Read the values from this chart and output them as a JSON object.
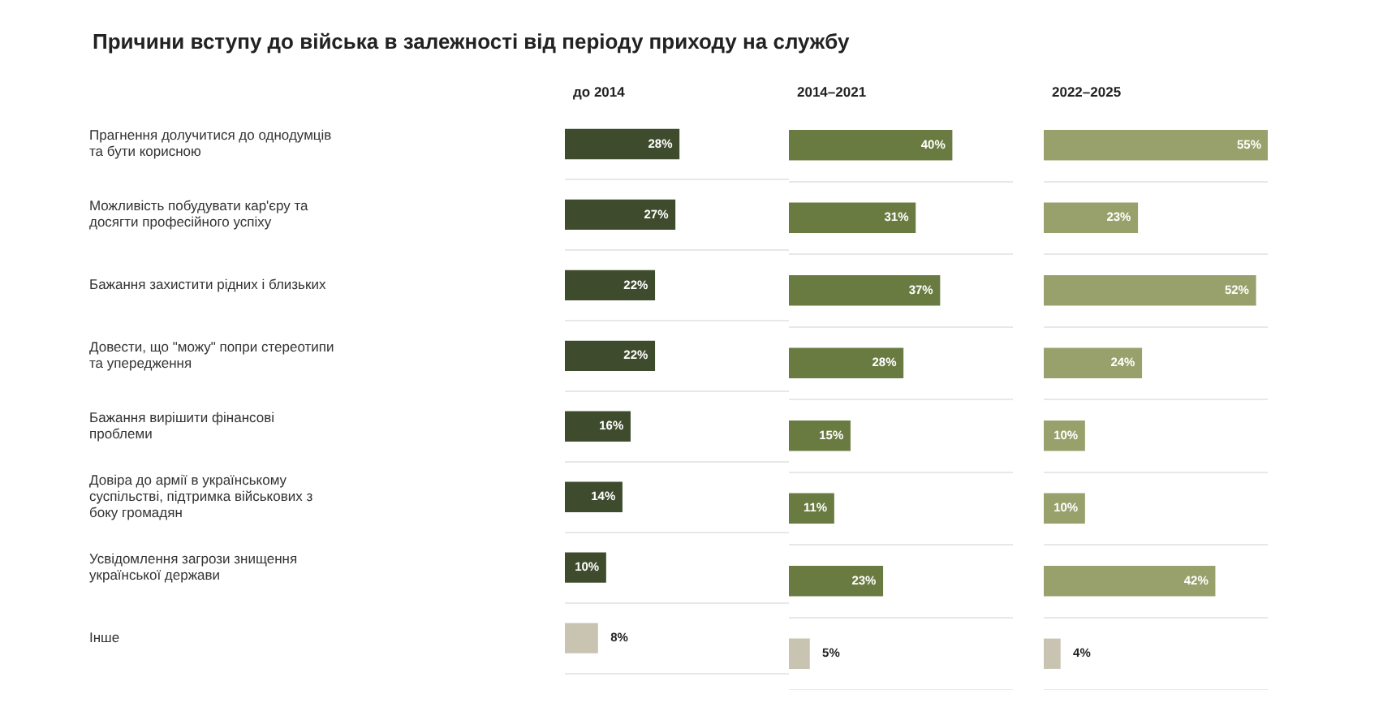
{
  "chart_data": [
    {
      "type": "other",
      "title": "Причини вступу до війська в залежності від періоду приходу на службу"
    },
    {
      "type": "bar",
      "orientation": "horizontal",
      "title": "до 2014",
      "categories": [
        "Прагнення долучитися до однодумців та бути корисною",
        "Можливість побудувати кар'єру та досягти професійного успіху",
        "Бажання захистити рідних і близьких",
        "Довести, що \"можу\" попри стереотипи та упередження",
        "Бажання вирішити фінансові проблеми",
        "Довіра до армії в українському суспільстві, підтримка військових з боку громадян",
        "Усвідомлення загрози знищення української держави",
        "Інше"
      ],
      "values": [
        28,
        27,
        22,
        22,
        16,
        14,
        10,
        8
      ],
      "value_labels": [
        "28%",
        "27%",
        "22%",
        "22%",
        "16%",
        "14%",
        "10%",
        "8%"
      ],
      "colors": [
        "#3e4b2c",
        "#3e4b2c",
        "#3e4b2c",
        "#3e4b2c",
        "#3e4b2c",
        "#3e4b2c",
        "#3e4b2c",
        "#c9c4b1"
      ],
      "grid": "y",
      "tick_labels": "y"
    },
    {
      "type": "bar",
      "orientation": "horizontal",
      "title": "2014–2021",
      "categories": [
        null,
        null,
        null,
        null,
        null,
        null,
        null,
        null
      ],
      "values": [
        40,
        31,
        37,
        28,
        15,
        11,
        23,
        5
      ],
      "value_labels": [
        "40%",
        "31%",
        "37%",
        "28%",
        "15%",
        "11%",
        "23%",
        "5%"
      ],
      "colors": [
        "#6a7b41",
        "#6a7b41",
        "#6a7b41",
        "#6a7b41",
        "#6a7b41",
        "#6a7b41",
        "#6a7b41",
        "#c9c4b1"
      ],
      "grid": "y",
      "tick_labels": false
    },
    {
      "type": "bar",
      "orientation": "horizontal",
      "title": "2022–2025",
      "categories": [
        null,
        null,
        null,
        null,
        null,
        null,
        null,
        null
      ],
      "values": [
        55,
        23,
        52,
        24,
        10,
        10,
        42,
        4
      ],
      "value_labels": [
        "55%",
        "23%",
        "52%",
        "24%",
        "10%",
        "10%",
        "42%",
        "4%"
      ],
      "colors": [
        "#98a16b",
        "#98a16b",
        "#98a16b",
        "#98a16b",
        "#98a16b",
        "#98a16b",
        "#98a16b",
        "#c9c4b1"
      ],
      "grid": "y",
      "tick_labels": false
    }
  ]
}
